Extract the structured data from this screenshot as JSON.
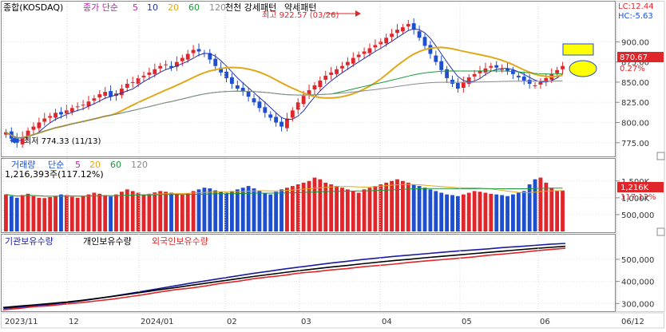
{
  "colors": {
    "up": "#e0262a",
    "down": "#1f4fd1",
    "ma5": "#2233aa",
    "ma20": "#e0a81a",
    "ma60": "#1a9a3a",
    "ma120": "#8a8a8a",
    "panel_border": "#8a8a8a",
    "label_hi": "#e0262a",
    "label_lo": "#1f4fd1",
    "inst": "#1a1aa0",
    "indiv": "#000000",
    "foreign": "#e0262a",
    "highlight_fill": "#ffff00"
  },
  "header": {
    "title": "종합(KOSDAQ)",
    "ma_label": "종가 단순",
    "ma_periods": [
      "5",
      "10",
      "20",
      "60",
      "120"
    ],
    "pattern_label": "천천 강세패턴",
    "pattern_label2": "약세패턴",
    "lc": "LC:12.44",
    "hc": "HC:-5.63"
  },
  "annotations": {
    "high": "최고 922.57 (03/26)",
    "low": "최저 774.33 (11/13)",
    "price_now": "870.67",
    "pct_now": "0.27%"
  },
  "volume": {
    "title": "거래량",
    "ma_label": "단순",
    "ma_periods": [
      "5",
      "20",
      "60",
      "120"
    ],
    "current": "1,216,393주(117.12%)",
    "current_tag": "1,216K",
    "pct_tag": "117.12%"
  },
  "flow": {
    "inst_label": "기관보유수량",
    "indiv_label": "개인보유수량",
    "foreign_label": "외국인보유수량"
  },
  "chart_data": [
    {
      "type": "candlestick",
      "title": "종합(KOSDAQ)",
      "y_ticks": [
        "900.00",
        "875.00",
        "850.00",
        "825.00",
        "800.00",
        "775.00"
      ],
      "y_tick_values": [
        900,
        875,
        850,
        825,
        800,
        775
      ],
      "ylim": [
        760,
        932
      ],
      "x_ticks": [
        "2023/11",
        "12",
        "2024/01",
        "02",
        "03",
        "04",
        "05",
        "06",
        "06/12"
      ],
      "series": [
        {
          "name": "종가 단순 5",
          "color": "#2233aa"
        },
        {
          "name": "20",
          "color": "#e0a81a"
        },
        {
          "name": "60",
          "color": "#1a9a3a"
        },
        {
          "name": "120",
          "color": "#8a8a8a"
        }
      ],
      "close": [
        788,
        780,
        775,
        782,
        790,
        795,
        800,
        805,
        808,
        812,
        810,
        815,
        818,
        820,
        822,
        826,
        830,
        835,
        838,
        832,
        836,
        842,
        848,
        850,
        855,
        858,
        862,
        866,
        870,
        872,
        868,
        875,
        880,
        885,
        890,
        888,
        885,
        878,
        870,
        862,
        855,
        848,
        842,
        838,
        832,
        825,
        818,
        812,
        806,
        800,
        795,
        805,
        815,
        825,
        833,
        840,
        846,
        852,
        858,
        862,
        866,
        870,
        875,
        880,
        884,
        888,
        892,
        896,
        900,
        905,
        910,
        915,
        918,
        922,
        915,
        905,
        895,
        885,
        875,
        865,
        855,
        848,
        842,
        850,
        856,
        860,
        864,
        867,
        870,
        868,
        866,
        864,
        860,
        856,
        852,
        848,
        846,
        850,
        855,
        860,
        865,
        870
      ]
    },
    {
      "type": "bar",
      "title": "거래량",
      "y_ticks": [
        "1,500K",
        "1,000K",
        "500,000"
      ],
      "y_tick_values": [
        1500,
        1000,
        500
      ],
      "ylim": [
        0,
        1850
      ],
      "unit": "K",
      "values": [
        1100,
        1050,
        1000,
        1080,
        1120,
        1050,
        1000,
        990,
        1020,
        1060,
        1100,
        1080,
        1030,
        1000,
        1050,
        1100,
        1150,
        1120,
        1080,
        1040,
        1100,
        1180,
        1250,
        1200,
        1150,
        1100,
        1120,
        1160,
        1200,
        1180,
        1150,
        1120,
        1100,
        1130,
        1200,
        1250,
        1300,
        1280,
        1220,
        1180,
        1150,
        1200,
        1250,
        1300,
        1350,
        1280,
        1200,
        1150,
        1100,
        1180,
        1250,
        1300,
        1350,
        1400,
        1450,
        1500,
        1600,
        1550,
        1450,
        1400,
        1350,
        1300,
        1250,
        1200,
        1150,
        1250,
        1300,
        1350,
        1400,
        1450,
        1500,
        1550,
        1500,
        1450,
        1400,
        1350,
        1300,
        1250,
        1200,
        1150,
        1100,
        1080,
        1050,
        1100,
        1150,
        1200,
        1180,
        1150,
        1120,
        1100,
        1080,
        1050,
        1100,
        1150,
        1200,
        1400,
        1550,
        1600,
        1450,
        1300,
        1200,
        1216
      ]
    },
    {
      "type": "line",
      "title": "",
      "y_ticks": [
        "500,000",
        "400,000",
        "300,000"
      ],
      "y_tick_values": [
        500000,
        400000,
        300000
      ],
      "ylim": [
        265000,
        590000
      ],
      "series": [
        {
          "name": "기관보유수량",
          "color": "#1a1aa0",
          "values": [
            278000,
            283000,
            290000,
            296000,
            304000,
            312000,
            322000,
            333000,
            344000,
            356000,
            368000,
            380000,
            392000,
            403000,
            414000,
            425000,
            436000,
            446000,
            456000,
            465000,
            474000,
            483000,
            491000,
            499000,
            506000,
            513000,
            519000,
            525000,
            531000,
            537000,
            542000,
            547000,
            553000,
            558000,
            563000,
            568000,
            572000
          ]
        },
        {
          "name": "개인보유수량",
          "color": "#000000",
          "values": [
            282000,
            288000,
            294000,
            300000,
            306000,
            314000,
            323000,
            332000,
            342000,
            352000,
            362000,
            372000,
            382000,
            392000,
            402000,
            412000,
            422000,
            431000,
            440000,
            449000,
            457000,
            465000,
            472000,
            480000,
            487000,
            494000,
            500000,
            507000,
            513000,
            519000,
            525000,
            531000,
            537000,
            543000,
            549000,
            554000,
            559000
          ]
        },
        {
          "name": "외국인보유수량",
          "color": "#e0262a",
          "values": [
            272000,
            278000,
            286000,
            290000,
            298000,
            304000,
            312000,
            320000,
            330000,
            340000,
            352000,
            362000,
            370000,
            380000,
            392000,
            400000,
            412000,
            420000,
            428000,
            438000,
            444000,
            452000,
            458000,
            466000,
            472000,
            478000,
            486000,
            492000,
            498000,
            504000,
            510000,
            518000,
            524000,
            530000,
            538000,
            544000,
            550000
          ]
        }
      ]
    }
  ]
}
